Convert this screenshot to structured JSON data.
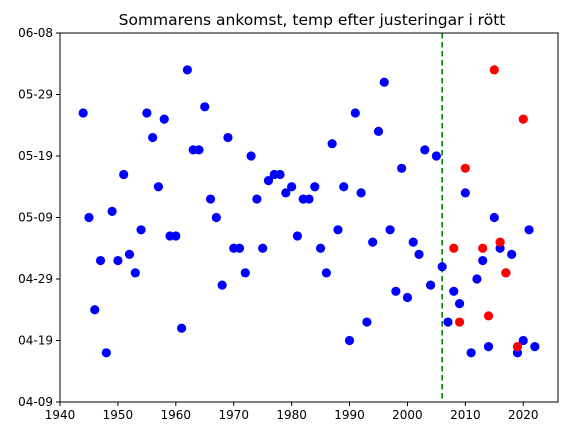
{
  "chart_data": {
    "type": "scatter",
    "title": "Sommarens ankomst, temp efter justeringar i rött",
    "xlabel": "",
    "ylabel": "",
    "xlim": [
      1940,
      2026
    ],
    "ylim": [
      "04-09",
      "06-08"
    ],
    "x_ticks": [
      1940,
      1950,
      1960,
      1970,
      1980,
      1990,
      2000,
      2010,
      2020
    ],
    "y_ticks": [
      "04-09",
      "04-19",
      "04-29",
      "05-09",
      "05-19",
      "05-29",
      "06-08"
    ],
    "grid": false,
    "legend": "none",
    "vertical_line": {
      "x": 2006,
      "style": "dashed",
      "color": "#008000"
    },
    "series": [
      {
        "color": "#0000ff",
        "points": [
          {
            "x": 1944,
            "y": "05-26"
          },
          {
            "x": 1945,
            "y": "05-09"
          },
          {
            "x": 1946,
            "y": "04-24"
          },
          {
            "x": 1947,
            "y": "05-02"
          },
          {
            "x": 1948,
            "y": "04-17"
          },
          {
            "x": 1949,
            "y": "05-10"
          },
          {
            "x": 1950,
            "y": "05-02"
          },
          {
            "x": 1951,
            "y": "05-16"
          },
          {
            "x": 1952,
            "y": "05-03"
          },
          {
            "x": 1953,
            "y": "04-30"
          },
          {
            "x": 1954,
            "y": "05-07"
          },
          {
            "x": 1955,
            "y": "05-26"
          },
          {
            "x": 1956,
            "y": "05-22"
          },
          {
            "x": 1957,
            "y": "05-14"
          },
          {
            "x": 1958,
            "y": "05-25"
          },
          {
            "x": 1959,
            "y": "05-06"
          },
          {
            "x": 1960,
            "y": "05-06"
          },
          {
            "x": 1961,
            "y": "04-21"
          },
          {
            "x": 1962,
            "y": "06-02"
          },
          {
            "x": 1963,
            "y": "05-20"
          },
          {
            "x": 1964,
            "y": "05-20"
          },
          {
            "x": 1965,
            "y": "05-27"
          },
          {
            "x": 1966,
            "y": "05-12"
          },
          {
            "x": 1967,
            "y": "05-09"
          },
          {
            "x": 1968,
            "y": "04-28"
          },
          {
            "x": 1969,
            "y": "05-22"
          },
          {
            "x": 1970,
            "y": "05-04"
          },
          {
            "x": 1971,
            "y": "05-04"
          },
          {
            "x": 1972,
            "y": "05-00"
          },
          {
            "x": 1973,
            "y": "05-19"
          },
          {
            "x": 1974,
            "y": "05-12"
          },
          {
            "x": 1975,
            "y": "05-04"
          },
          {
            "x": 1976,
            "y": "05-15"
          },
          {
            "x": 1977,
            "y": "05-16"
          },
          {
            "x": 1978,
            "y": "05-16"
          },
          {
            "x": 1979,
            "y": "05-13"
          },
          {
            "x": 1980,
            "y": "05-14"
          },
          {
            "x": 1981,
            "y": "05-06"
          },
          {
            "x": 1982,
            "y": "05-12"
          },
          {
            "x": 1983,
            "y": "05-12"
          },
          {
            "x": 1984,
            "y": "05-14"
          },
          {
            "x": 1985,
            "y": "05-04"
          },
          {
            "x": 1986,
            "y": "04-30"
          },
          {
            "x": 1987,
            "y": "05-21"
          },
          {
            "x": 1988,
            "y": "05-07"
          },
          {
            "x": 1989,
            "y": "05-14"
          },
          {
            "x": 1990,
            "y": "04-19"
          },
          {
            "x": 1991,
            "y": "05-26"
          },
          {
            "x": 1992,
            "y": "05-13"
          },
          {
            "x": 1993,
            "y": "04-22"
          },
          {
            "x": 1994,
            "y": "05-05"
          },
          {
            "x": 1995,
            "y": "05-23"
          },
          {
            "x": 1996,
            "y": "05-31"
          },
          {
            "x": 1997,
            "y": "05-07"
          },
          {
            "x": 1998,
            "y": "04-27"
          },
          {
            "x": 1999,
            "y": "05-17"
          },
          {
            "x": 2000,
            "y": "04-26"
          },
          {
            "x": 2001,
            "y": "05-05"
          },
          {
            "x": 2002,
            "y": "05-03"
          },
          {
            "x": 2003,
            "y": "05-20"
          },
          {
            "x": 2004,
            "y": "04-28"
          },
          {
            "x": 2005,
            "y": "05-19"
          },
          {
            "x": 2006,
            "y": "05-01"
          },
          {
            "x": 2007,
            "y": "04-22"
          },
          {
            "x": 2008,
            "y": "04-27"
          },
          {
            "x": 2009,
            "y": "04-25"
          },
          {
            "x": 2010,
            "y": "05-13"
          },
          {
            "x": 2011,
            "y": "04-17"
          },
          {
            "x": 2012,
            "y": "04-29"
          },
          {
            "x": 2013,
            "y": "05-02"
          },
          {
            "x": 2014,
            "y": "04-18"
          },
          {
            "x": 2015,
            "y": "05-09"
          },
          {
            "x": 2016,
            "y": "05-04"
          },
          {
            "x": 2017,
            "y": "04-30"
          },
          {
            "x": 2018,
            "y": "05-03"
          },
          {
            "x": 2019,
            "y": "04-17"
          },
          {
            "x": 2020,
            "y": "04-19"
          },
          {
            "x": 2021,
            "y": "05-07"
          },
          {
            "x": 2022,
            "y": "04-18"
          }
        ]
      },
      {
        "color": "#ff0000",
        "points": [
          {
            "x": 2008,
            "y": "05-04"
          },
          {
            "x": 2009,
            "y": "04-22"
          },
          {
            "x": 2010,
            "y": "05-17"
          },
          {
            "x": 2013,
            "y": "05-04"
          },
          {
            "x": 2014,
            "y": "04-23"
          },
          {
            "x": 2015,
            "y": "06-02"
          },
          {
            "x": 2016,
            "y": "05-05"
          },
          {
            "x": 2017,
            "y": "04-30"
          },
          {
            "x": 2019,
            "y": "04-18"
          },
          {
            "x": 2020,
            "y": "05-25"
          }
        ]
      }
    ]
  }
}
